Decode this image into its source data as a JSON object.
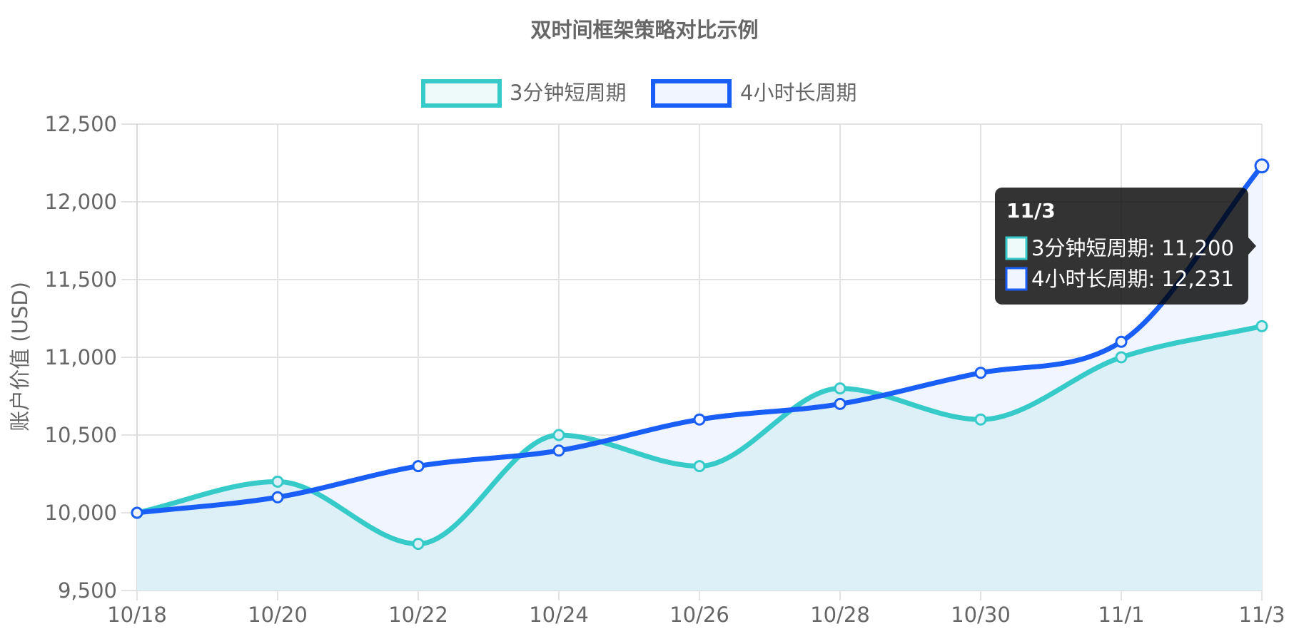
{
  "chart_data": {
    "type": "line",
    "title": "双时间框架策略对比示例",
    "ylabel": "账户价值 (USD)",
    "xlabel": "",
    "ylim": [
      9500,
      12500
    ],
    "y_ticks": [
      9500,
      10000,
      10500,
      11000,
      11500,
      12000,
      12500
    ],
    "y_tick_labels": [
      "9,500",
      "10,000",
      "10,500",
      "11,000",
      "11,500",
      "12,000",
      "12,500"
    ],
    "categories": [
      "10/18",
      "10/20",
      "10/22",
      "10/24",
      "10/26",
      "10/28",
      "10/30",
      "11/1",
      "11/3"
    ],
    "grid": true,
    "legend_position": "top",
    "series": [
      {
        "name": "3分钟短周期",
        "values": [
          10000,
          10200,
          9800,
          10500,
          10300,
          10800,
          10600,
          11000,
          11200
        ],
        "color": "#36cbc9",
        "fill": "#ddf0f7"
      },
      {
        "name": "4小时长周期",
        "values": [
          10000,
          10100,
          10300,
          10400,
          10600,
          10700,
          10900,
          11100,
          12231
        ],
        "color": "#1a5ef8",
        "fill": "#f0f5ff"
      }
    ],
    "tooltip": {
      "title": "11/3",
      "lines": [
        "3分钟短周期: 11,200",
        "4小时长周期: 12,231"
      ]
    }
  }
}
